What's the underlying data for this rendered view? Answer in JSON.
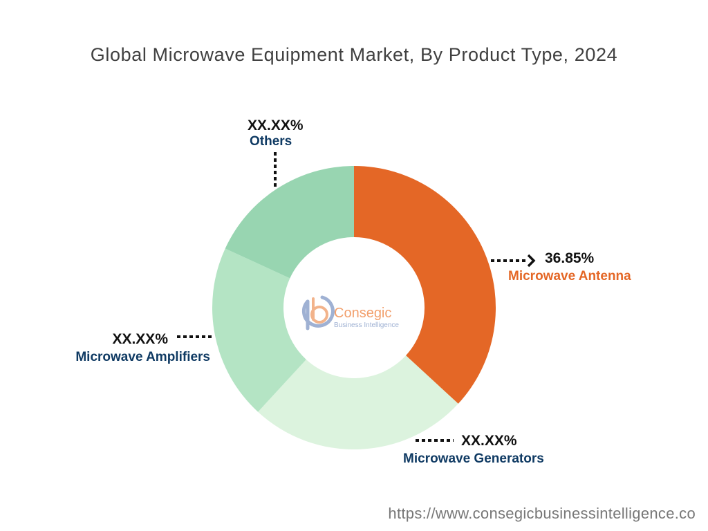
{
  "header": {
    "title": "Global Microwave Equipment Market, By Product Type, 2024"
  },
  "chart_data": {
    "type": "pie",
    "title": "Global Microwave Equipment Market, By Product Type, 2024",
    "series": [
      {
        "name": "Microwave Antenna",
        "value": 36.85,
        "label": "36.85%",
        "color": "#E46726",
        "name_color": "#E46726"
      },
      {
        "name": "Microwave Generators",
        "value": 25.0,
        "label": "XX.XX%",
        "color": "#DCF3DE",
        "name_color": "#0F3A63"
      },
      {
        "name": "Microwave Amplifiers",
        "value": 20.0,
        "label": "XX.XX%",
        "color": "#B4E4C4",
        "name_color": "#0F3A63"
      },
      {
        "name": "Others",
        "value": 18.15,
        "label": "XX.XX%",
        "color": "#98D5B1",
        "name_color": "#0F3A63"
      }
    ],
    "hole": "center logo",
    "legend": "none"
  },
  "logo": {
    "brand": "Consegic",
    "tagline": "Business Intelligence"
  },
  "footer": {
    "url": "https://www.consegicbusinessintelligence.co"
  }
}
